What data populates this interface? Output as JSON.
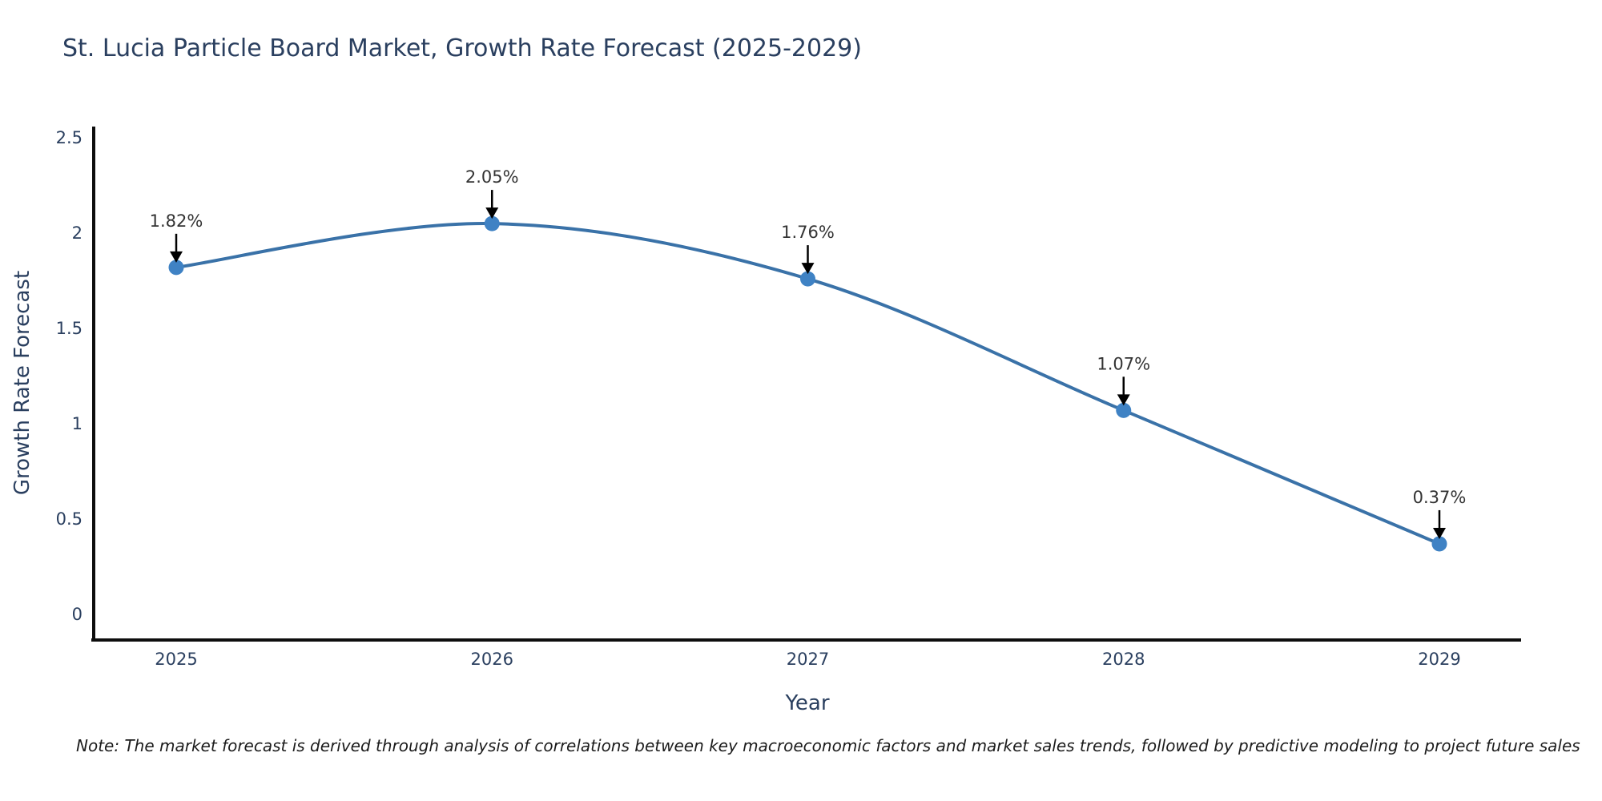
{
  "title": "St. Lucia Particle Board Market, Growth Rate Forecast (2025-2029)",
  "note": "Note: The market forecast is derived through analysis of correlations between key macroeconomic factors and market sales trends, followed by predictive modeling to project future sales",
  "colors": {
    "line": "#3a72a8",
    "marker": "#3f82c4",
    "axis": "#0d0d0d",
    "tick_text": "#2a3f5f",
    "annotation_text": "#333333",
    "annotation_arrow": "#000000",
    "background": "#ffffff"
  },
  "chart_data": {
    "type": "line",
    "title": "St. Lucia Particle Board Market, Growth Rate Forecast (2025-2029)",
    "xlabel": "Year",
    "ylabel": "Growth Rate Forecast",
    "x": [
      2025,
      2026,
      2027,
      2028,
      2029
    ],
    "values": [
      1.82,
      2.05,
      1.76,
      1.07,
      0.37
    ],
    "point_labels": [
      "1.82%",
      "2.05%",
      "1.76%",
      "1.07%",
      "0.37%"
    ],
    "xticks": [
      "2025",
      "2026",
      "2027",
      "2028",
      "2029"
    ],
    "yticks": [
      0,
      0.5,
      1,
      1.5,
      2,
      2.5
    ],
    "ytick_labels": [
      "0",
      "0.5",
      "1",
      "1.5",
      "2",
      "2.5"
    ],
    "ylim": [
      -0.135,
      2.56
    ],
    "line_shape": "spline",
    "grid": false,
    "legend_position": "none",
    "marker": "circle"
  }
}
